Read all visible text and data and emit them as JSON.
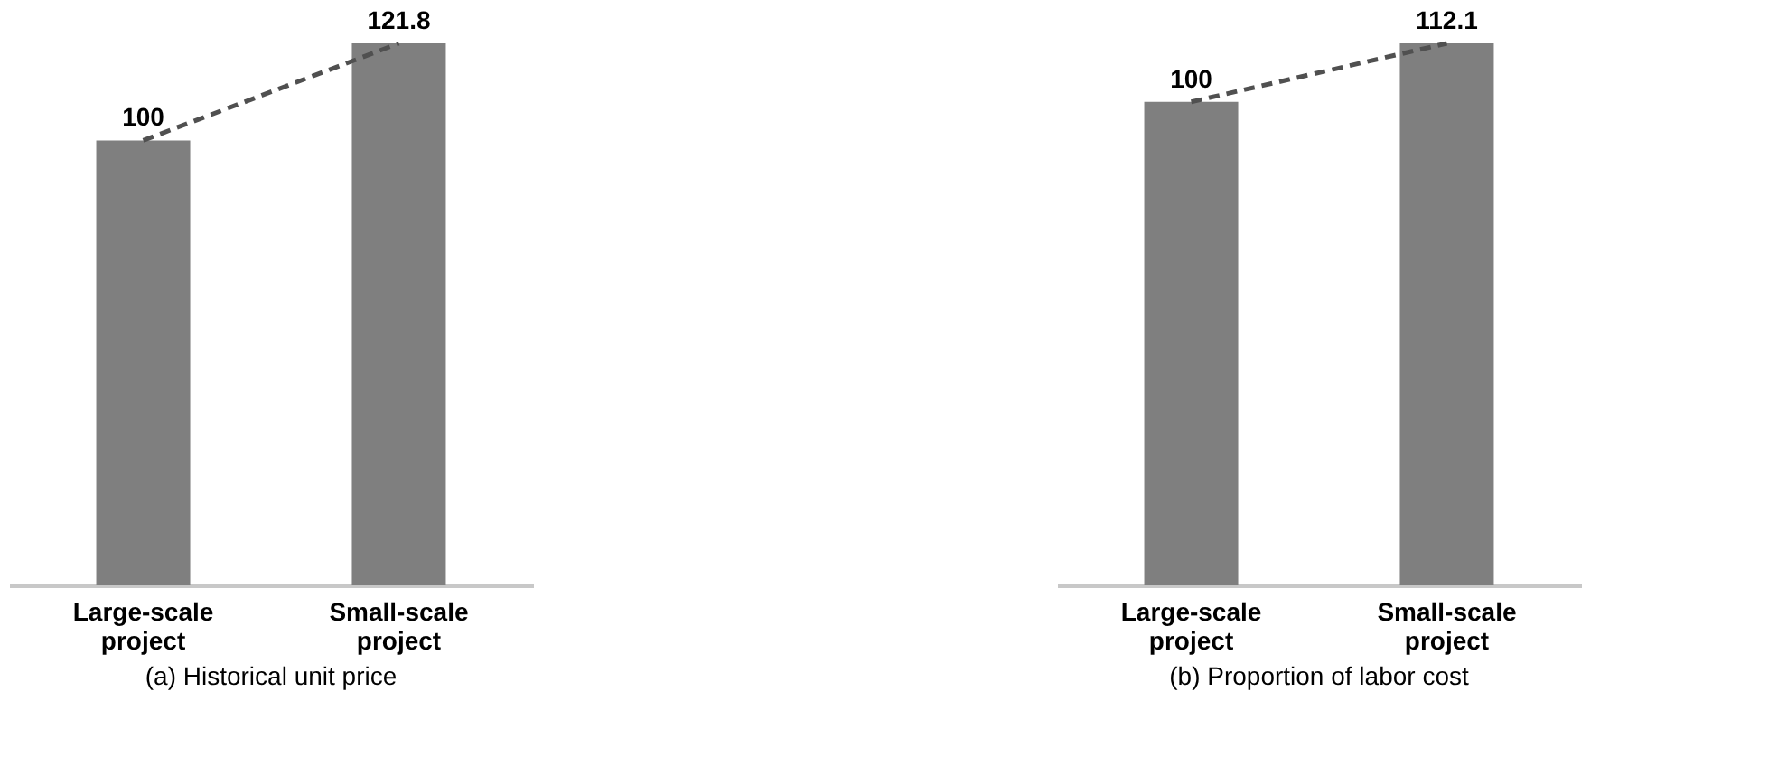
{
  "chart_data": [
    {
      "type": "bar",
      "title": "(a) Historical unit price",
      "categories": [
        "Large-scale project",
        "Small-scale project"
      ],
      "values": [
        100,
        121.8
      ],
      "color": "#7f7f7f",
      "data_labels": true
    },
    {
      "type": "bar",
      "title": "(b) Proportion of labor cost",
      "categories": [
        "Large-scale project",
        "Small-scale project"
      ],
      "values": [
        100,
        112.1
      ],
      "color": "#7f7f7f",
      "data_labels": true
    }
  ]
}
